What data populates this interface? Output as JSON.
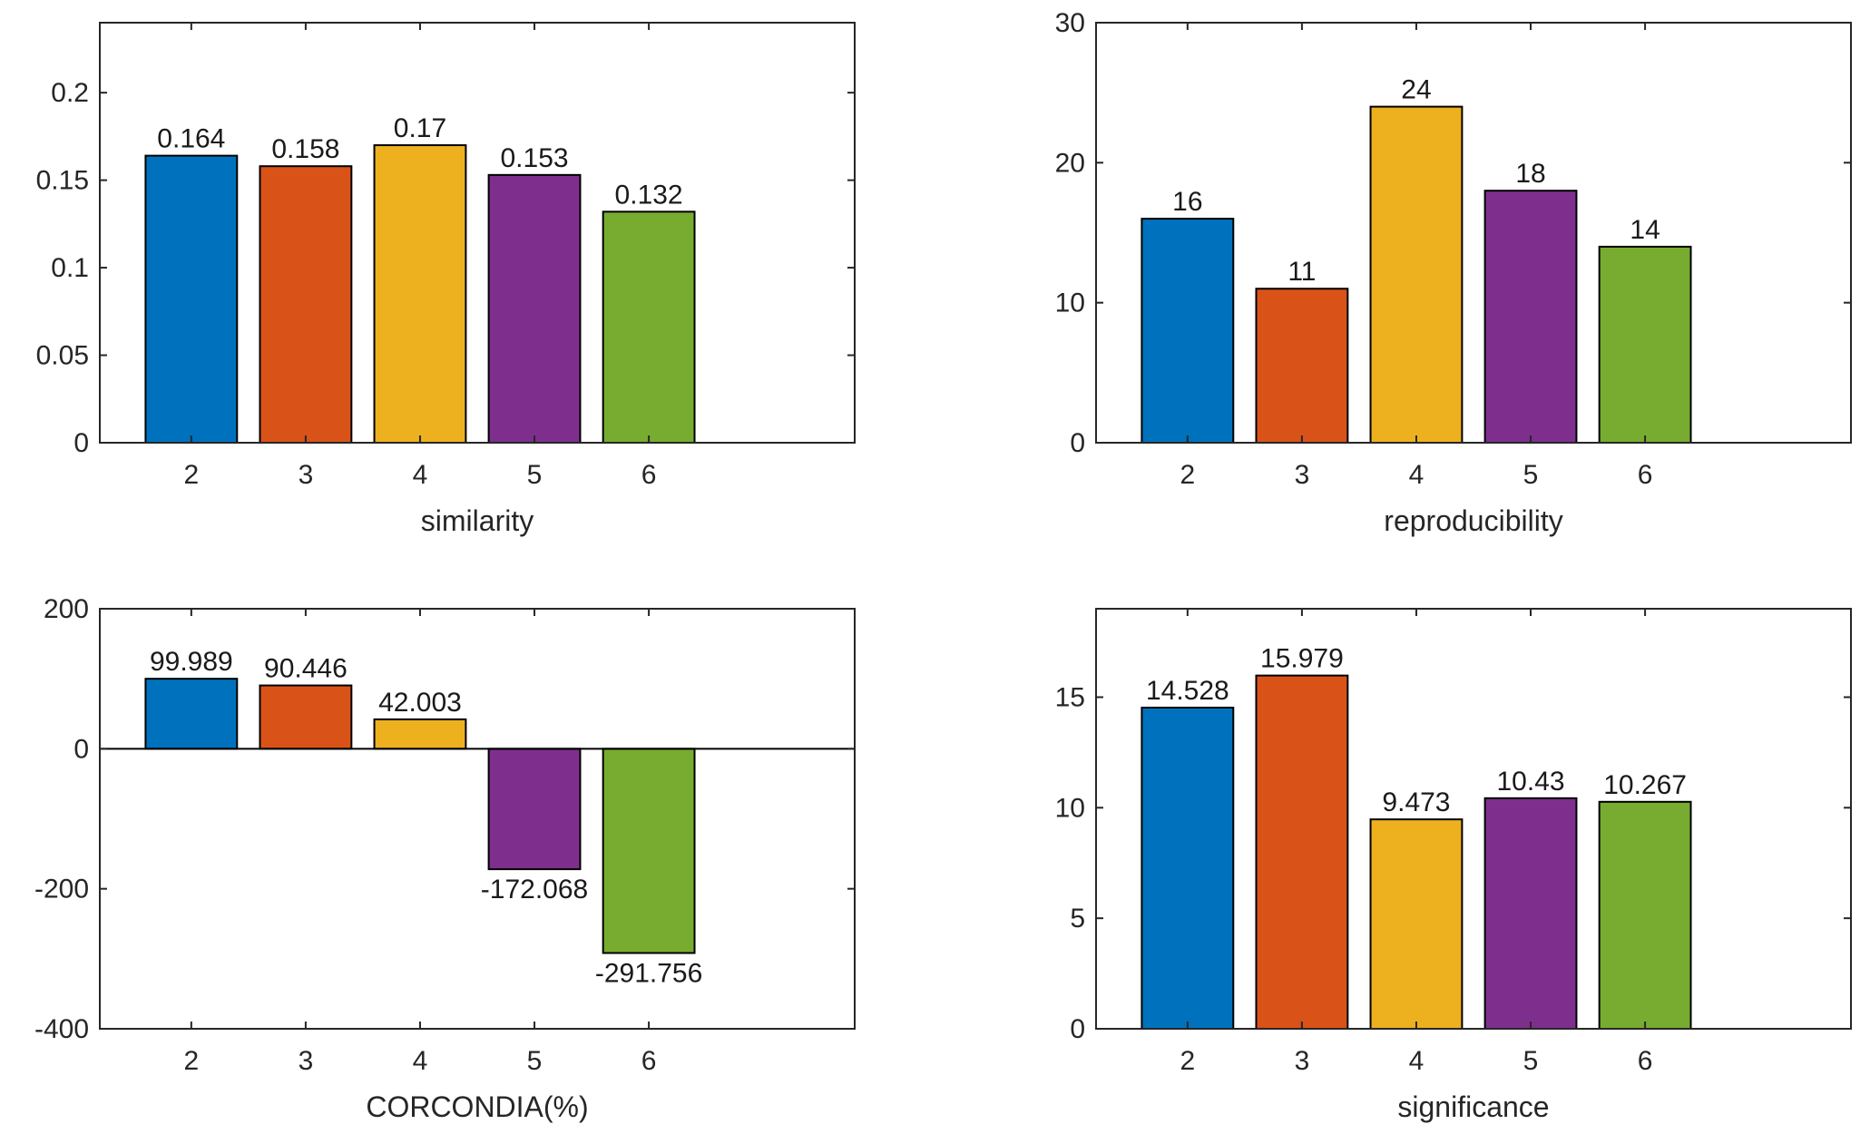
{
  "chart_data": [
    {
      "type": "bar",
      "panel": "top-left",
      "categories": [
        "2",
        "3",
        "4",
        "5",
        "6"
      ],
      "values": [
        0.164,
        0.158,
        0.17,
        0.153,
        0.132
      ],
      "data_labels": [
        "0.164",
        "0.158",
        "0.17",
        "0.153",
        "0.132"
      ],
      "xlabel": "similarity",
      "ylabel": "",
      "ylim": [
        0,
        0.24
      ],
      "yticks": [
        0,
        0.05,
        0.1,
        0.15,
        0.2
      ],
      "ytick_labels": [
        "0",
        "0.05",
        "0.1",
        "0.15",
        "0.2"
      ],
      "xlim": [
        1.2,
        7.8
      ]
    },
    {
      "type": "bar",
      "panel": "top-right",
      "categories": [
        "2",
        "3",
        "4",
        "5",
        "6"
      ],
      "values": [
        16,
        11,
        24,
        18,
        14
      ],
      "data_labels": [
        "16",
        "11",
        "24",
        "18",
        "14"
      ],
      "xlabel": "reproducibility",
      "ylabel": "",
      "ylim": [
        0,
        30
      ],
      "yticks": [
        0,
        10,
        20,
        30
      ],
      "ytick_labels": [
        "0",
        "10",
        "20",
        "30"
      ],
      "xlim": [
        1.2,
        7.8
      ]
    },
    {
      "type": "bar",
      "panel": "bottom-left",
      "categories": [
        "2",
        "3",
        "4",
        "5",
        "6"
      ],
      "values": [
        99.989,
        90.446,
        42.003,
        -172.068,
        -291.756
      ],
      "data_labels": [
        "99.989",
        "90.446",
        "42.003",
        "-172.068",
        "-291.756"
      ],
      "xlabel": "CORCONDIA(%)",
      "ylabel": "",
      "ylim": [
        -400,
        200
      ],
      "yticks": [
        -400,
        -200,
        0,
        200
      ],
      "ytick_labels": [
        "-400",
        "-200",
        "0",
        "200"
      ],
      "xlim": [
        1.2,
        7.8
      ]
    },
    {
      "type": "bar",
      "panel": "bottom-right",
      "categories": [
        "2",
        "3",
        "4",
        "5",
        "6"
      ],
      "values": [
        14.528,
        15.979,
        9.473,
        10.43,
        10.267
      ],
      "data_labels": [
        "14.528",
        "15.979",
        "9.473",
        "10.43",
        "10.267"
      ],
      "xlabel": "significance",
      "ylabel": "",
      "ylim": [
        0,
        19
      ],
      "yticks": [
        0,
        5,
        10,
        15
      ],
      "ytick_labels": [
        "0",
        "5",
        "10",
        "15"
      ],
      "xlim": [
        1.2,
        7.8
      ]
    }
  ],
  "colors": [
    "#0072BD",
    "#D95319",
    "#EDB120",
    "#7E2F8E",
    "#77AC30"
  ]
}
